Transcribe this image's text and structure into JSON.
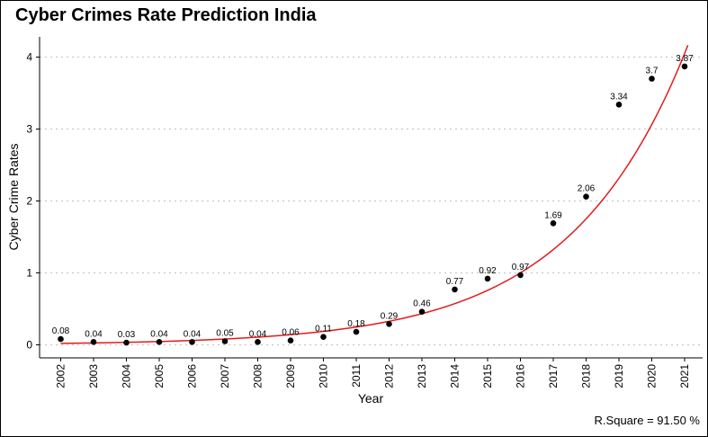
{
  "chart_data": {
    "type": "scatter",
    "title": "Cyber Crimes Rate Prediction India",
    "xlabel": "Year",
    "ylabel": "Cyber Crime Rates",
    "caption": "R.Square = 91.50 %",
    "x": [
      "2002",
      "2003",
      "2004",
      "2005",
      "2006",
      "2007",
      "2008",
      "2009",
      "2010",
      "2011",
      "2012",
      "2013",
      "2014",
      "2015",
      "2016",
      "2017",
      "2018",
      "2019",
      "2020",
      "2021"
    ],
    "values": [
      0.08,
      0.04,
      0.03,
      0.04,
      0.04,
      0.05,
      0.04,
      0.06,
      0.11,
      0.18,
      0.29,
      0.46,
      0.77,
      0.92,
      0.97,
      1.69,
      2.06,
      3.34,
      3.7,
      3.87
    ],
    "labels": [
      "0.08",
      "0.04",
      "0.03",
      "0.04",
      "0.04",
      "0.05",
      "0.04",
      "0.06",
      "0.11",
      "0.18",
      "0.29",
      "0.46",
      "0.77",
      "0.92",
      "0.97",
      "1.69",
      "2.06",
      "3.34",
      "3.7",
      "3.87"
    ],
    "yticks": [
      0,
      1,
      2,
      3,
      4
    ],
    "ylim": [
      -0.15,
      4.1
    ],
    "fit": {
      "type": "exponential",
      "x": [
        "2002",
        "2003",
        "2004",
        "2005",
        "2006",
        "2007",
        "2008",
        "2009",
        "2010",
        "2011",
        "2012",
        "2013",
        "2014",
        "2015",
        "2016",
        "2017",
        "2018",
        "2019",
        "2020",
        "2021"
      ],
      "values": [
        0.02,
        0.025,
        0.032,
        0.04,
        0.05,
        0.065,
        0.08,
        0.11,
        0.15,
        0.2,
        0.27,
        0.37,
        0.51,
        0.7,
        0.94,
        1.28,
        1.73,
        2.33,
        3.1,
        4.05
      ]
    },
    "colors": {
      "points": "#000000",
      "fit": "#e41a1c",
      "grid": "#c8c8c8",
      "axis": "#000000"
    },
    "grid": "horizontal dotted",
    "legend": "none"
  }
}
